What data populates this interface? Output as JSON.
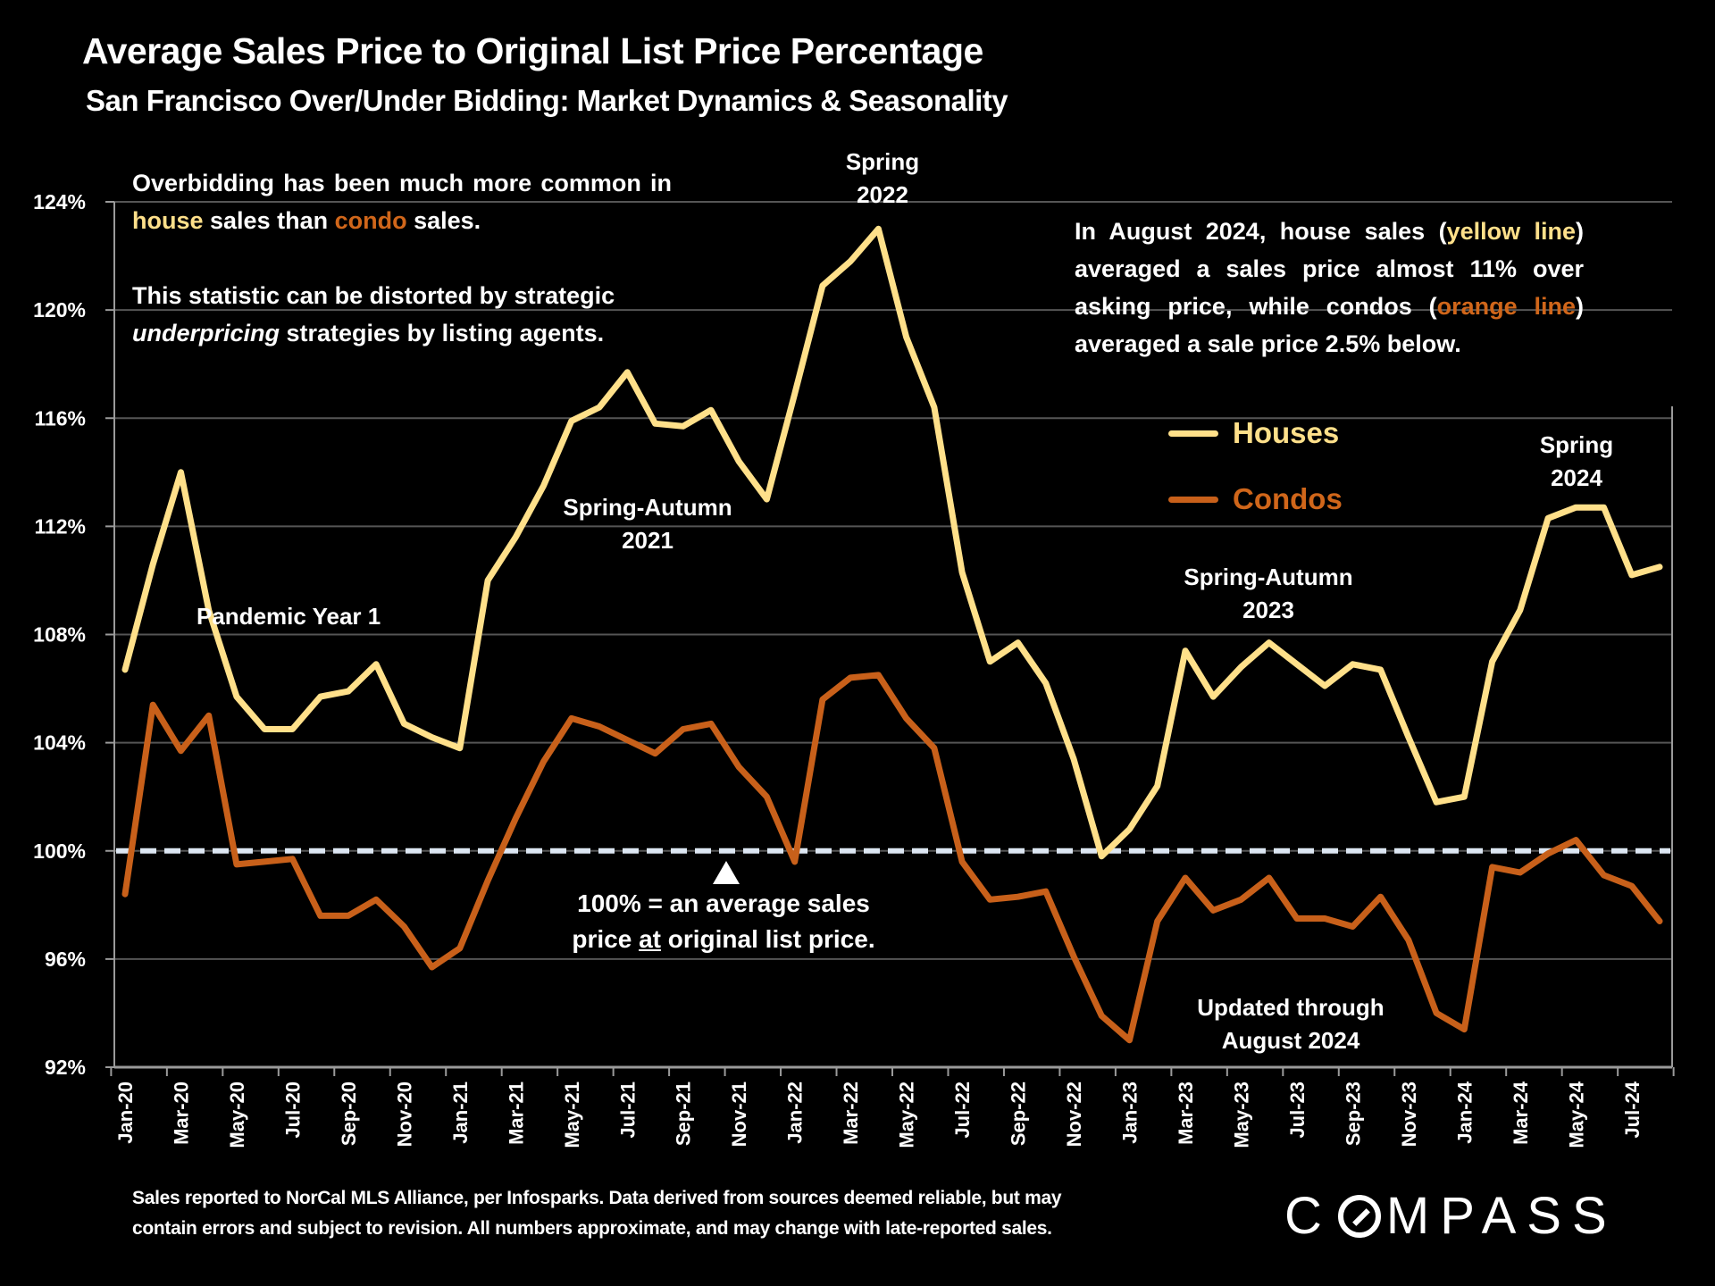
{
  "header": {
    "title": "Average Sales Price to Original List Price Percentage",
    "subtitle": "San Francisco Over/Under Bidding: Market Dynamics & Seasonality"
  },
  "notes": {
    "left_p1_a": "Overbidding has been much more common in ",
    "left_p1_house": "house",
    "left_p1_b": " sales than ",
    "left_p1_condo": "condo",
    "left_p1_c": " sales.",
    "left_p2_a": "This statistic can be distorted by strategic ",
    "left_p2_em": "underpricing",
    "left_p2_b": " strategies by listing agents.",
    "right_a": "In August 2024, house sales (",
    "right_yellow": "yellow line",
    "right_b": ") averaged a sales price almost 11% over asking price, while condos (",
    "right_orange": "orange line",
    "right_c": ") averaged a sale price 2.5% below."
  },
  "annotations": {
    "pandemic": "Pandemic Year 1",
    "sa2021_l1": "Spring-Autumn",
    "sa2021_l2": "2021",
    "spring2022_l1": "Spring",
    "spring2022_l2": "2022",
    "sa2023_l1": "Spring-Autumn",
    "sa2023_l2": "2023",
    "spring2024_l1": "Spring",
    "spring2024_l2": "2024",
    "updated_l1": "Updated through",
    "updated_l2": "August 2024",
    "baseline_l1": "100% = an average sales",
    "baseline_l2_a": "price ",
    "baseline_l2_u": "at",
    "baseline_l2_b": " original list price."
  },
  "legend": {
    "houses": "Houses",
    "condos": "Condos"
  },
  "footnote": {
    "line1": "Sales reported to NorCal MLS Alliance, per Infosparks. Data derived from sources deemed reliable, but may",
    "line2": "contain errors and subject to revision. All numbers approximate, and may change with late-reported sales."
  },
  "logo": {
    "pre": "C",
    "post": "MPASS"
  },
  "colors": {
    "houses": "#FFE08A",
    "condos": "#C8601A",
    "baseline": "#DCE6F2",
    "grid": "#555555",
    "axis": "#9a9a9a",
    "background": "#000000"
  },
  "chart_data": {
    "type": "line",
    "title": "Average Sales Price to Original List Price Percentage",
    "subtitle": "San Francisco Over/Under Bidding: Market Dynamics & Seasonality",
    "xlabel": "",
    "ylabel": "",
    "ylim": [
      92,
      124
    ],
    "yticks": [
      92,
      96,
      100,
      104,
      108,
      112,
      116,
      120,
      124
    ],
    "ytick_labels": [
      "92%",
      "96%",
      "100%",
      "104%",
      "108%",
      "112%",
      "116%",
      "120%",
      "124%"
    ],
    "grid": true,
    "legend_position": "center-right",
    "reference_line": {
      "value": 100,
      "style": "dashed",
      "label": "100% = an average sales price at original list price."
    },
    "x": [
      "Jan-20",
      "Feb-20",
      "Mar-20",
      "Apr-20",
      "May-20",
      "Jun-20",
      "Jul-20",
      "Aug-20",
      "Sep-20",
      "Oct-20",
      "Nov-20",
      "Dec-20",
      "Jan-21",
      "Feb-21",
      "Mar-21",
      "Apr-21",
      "May-21",
      "Jun-21",
      "Jul-21",
      "Aug-21",
      "Sep-21",
      "Oct-21",
      "Nov-21",
      "Dec-21",
      "Jan-22",
      "Feb-22",
      "Mar-22",
      "Apr-22",
      "May-22",
      "Jun-22",
      "Jul-22",
      "Aug-22",
      "Sep-22",
      "Oct-22",
      "Nov-22",
      "Dec-22",
      "Jan-23",
      "Feb-23",
      "Mar-23",
      "Apr-23",
      "May-23",
      "Jun-23",
      "Jul-23",
      "Aug-23",
      "Sep-23",
      "Oct-23",
      "Nov-23",
      "Dec-23",
      "Jan-24",
      "Feb-24",
      "Mar-24",
      "Apr-24",
      "May-24",
      "Jun-24",
      "Jul-24",
      "Aug-24"
    ],
    "xtick_labels": [
      "Jan-20",
      "Mar-20",
      "May-20",
      "Jul-20",
      "Sep-20",
      "Nov-20",
      "Jan-21",
      "Mar-21",
      "May-21",
      "Jul-21",
      "Sep-21",
      "Nov-21",
      "Jan-22",
      "Mar-22",
      "May-22",
      "Jul-22",
      "Sep-22",
      "Nov-22",
      "Jan-23",
      "Mar-23",
      "May-23",
      "Jul-23",
      "Sep-23",
      "Nov-23",
      "Jan-24",
      "Mar-24",
      "May-24",
      "Jul-24"
    ],
    "series": [
      {
        "name": "Houses",
        "color": "#FFE08A",
        "values": [
          106.7,
          110.6,
          114.0,
          108.9,
          105.7,
          104.5,
          104.5,
          105.7,
          105.9,
          106.9,
          104.7,
          104.2,
          103.8,
          110.0,
          111.6,
          113.5,
          115.9,
          116.4,
          117.7,
          115.8,
          115.7,
          116.3,
          114.4,
          113.0,
          116.9,
          120.9,
          121.8,
          123.0,
          119.0,
          116.4,
          110.3,
          107.0,
          107.7,
          106.2,
          103.4,
          99.8,
          100.8,
          102.4,
          107.4,
          105.7,
          106.8,
          107.7,
          106.9,
          106.1,
          106.9,
          106.7,
          104.2,
          101.8,
          102.0,
          107.0,
          108.9,
          112.3,
          112.7,
          112.7,
          110.2,
          110.5
        ]
      },
      {
        "name": "Condos",
        "color": "#C8601A",
        "values": [
          98.4,
          105.4,
          103.7,
          105.0,
          99.5,
          99.6,
          99.7,
          97.6,
          97.6,
          98.2,
          97.2,
          95.7,
          96.4,
          98.9,
          101.2,
          103.3,
          104.9,
          104.6,
          104.1,
          103.6,
          104.5,
          104.7,
          103.1,
          102.0,
          99.6,
          105.6,
          106.4,
          106.5,
          104.9,
          103.8,
          99.6,
          98.2,
          98.3,
          98.5,
          96.1,
          93.9,
          93.0,
          97.4,
          99.0,
          97.8,
          98.2,
          99.0,
          97.5,
          97.5,
          97.2,
          98.3,
          96.7,
          94.0,
          93.4,
          99.4,
          99.2,
          99.9,
          100.4,
          99.1,
          98.7,
          97.4
        ]
      }
    ]
  }
}
